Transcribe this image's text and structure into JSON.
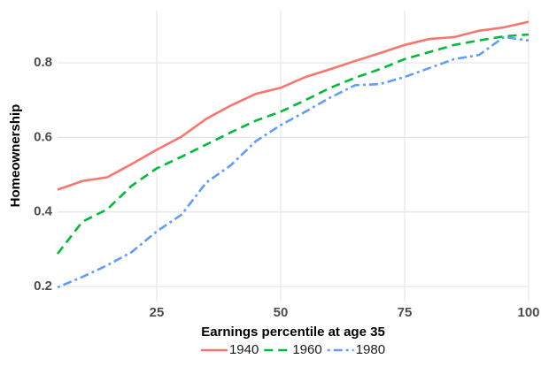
{
  "chart_data": {
    "type": "line",
    "x_label": "Earnings percentile at age 35",
    "y_label": "Homeownership",
    "x": [
      5,
      10,
      15,
      20,
      25,
      30,
      35,
      40,
      45,
      50,
      55,
      60,
      65,
      70,
      75,
      80,
      85,
      90,
      95,
      100
    ],
    "series": [
      {
        "name": "1940",
        "color": "#F8766D",
        "linestyle": "solid",
        "values": [
          0.46,
          0.483,
          0.493,
          0.529,
          0.567,
          0.602,
          0.65,
          0.686,
          0.717,
          0.733,
          0.762,
          0.783,
          0.805,
          0.826,
          0.848,
          0.864,
          0.869,
          0.886,
          0.895,
          0.91
        ]
      },
      {
        "name": "1960",
        "color": "#00BA38",
        "linestyle": "dashed",
        "values": [
          0.288,
          0.374,
          0.407,
          0.471,
          0.517,
          0.548,
          0.581,
          0.614,
          0.645,
          0.669,
          0.7,
          0.733,
          0.76,
          0.783,
          0.81,
          0.829,
          0.848,
          0.86,
          0.871,
          0.876
        ]
      },
      {
        "name": "1980",
        "color": "#619CFF",
        "linestyle": "dotdash",
        "values": [
          0.198,
          0.226,
          0.257,
          0.293,
          0.348,
          0.393,
          0.479,
          0.526,
          0.59,
          0.633,
          0.669,
          0.707,
          0.74,
          0.743,
          0.762,
          0.786,
          0.81,
          0.821,
          0.869,
          0.86
        ]
      }
    ],
    "xlim": [
      5,
      100
    ],
    "xticks": [
      25,
      50,
      75,
      100
    ],
    "ylim": [
      0.16,
      0.94
    ],
    "yticks": [
      0.2,
      0.4,
      0.6,
      0.8
    ],
    "grid": true,
    "legend": "bottom"
  }
}
